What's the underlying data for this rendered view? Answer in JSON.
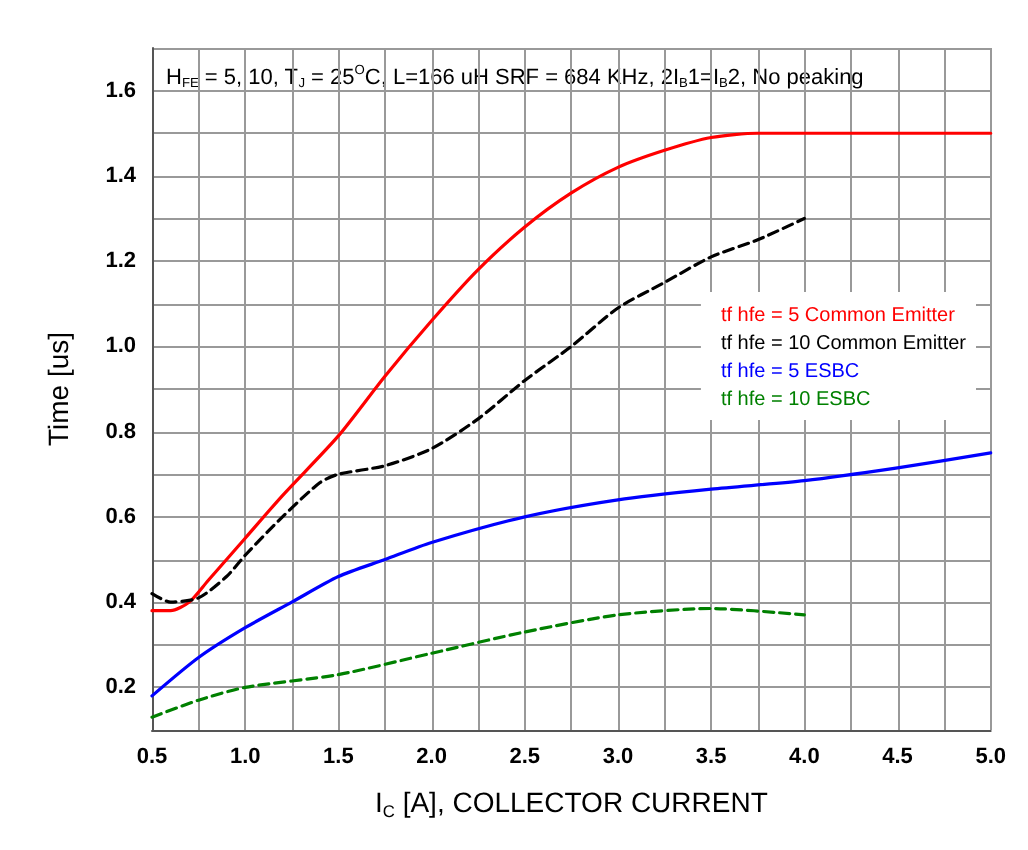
{
  "chart_data": {
    "type": "line",
    "xlabel": "I$_{C}$ [A], COLLECTOR CURRENT",
    "ylabel": "Time [us]",
    "annotations": [
      "H$_{FE}$ = 5, 10, T$_{J}$ = 25$^{O}$C, L=166 uH SRF = 684 KHz, 2I$_{B}$1=I$_{B}$2, No peaking"
    ],
    "xlim": [
      0.5,
      5.0
    ],
    "ylim": [
      0.1,
      1.7
    ],
    "xticks": [
      {
        "value": 0.5,
        "label": "0.5"
      },
      {
        "value": 0.75,
        "label": null
      },
      {
        "value": 1,
        "label": "1.0"
      },
      {
        "value": 1.25,
        "label": null
      },
      {
        "value": 1.5,
        "label": "1.5"
      },
      {
        "value": 1.75,
        "label": null
      },
      {
        "value": 2,
        "label": "2.0"
      },
      {
        "value": 2.25,
        "label": null
      },
      {
        "value": 2.5,
        "label": "2.5"
      },
      {
        "value": 2.75,
        "label": null
      },
      {
        "value": 3,
        "label": "3.0"
      },
      {
        "value": 3.25,
        "label": null
      },
      {
        "value": 3.5,
        "label": "3.5"
      },
      {
        "value": 3.75,
        "label": null
      },
      {
        "value": 4,
        "label": "4.0"
      },
      {
        "value": 4.25,
        "label": null
      },
      {
        "value": 4.5,
        "label": "4.5"
      },
      {
        "value": 4.75,
        "label": null
      },
      {
        "value": 5,
        "label": "5.0"
      }
    ],
    "yticks": [
      {
        "value": 0.1,
        "label": null
      },
      {
        "value": 0.2,
        "label": "0.2"
      },
      {
        "value": 0.3,
        "label": null
      },
      {
        "value": 0.4,
        "label": "0.4"
      },
      {
        "value": 0.5,
        "label": null
      },
      {
        "value": 0.6,
        "label": "0.6"
      },
      {
        "value": 0.7,
        "label": null
      },
      {
        "value": 0.8,
        "label": "0.8"
      },
      {
        "value": 0.9,
        "label": null
      },
      {
        "value": 1,
        "label": "1.0"
      },
      {
        "value": 1.1,
        "label": null
      },
      {
        "value": 1.2,
        "label": "1.2"
      },
      {
        "value": 1.3,
        "label": null
      },
      {
        "value": 1.4,
        "label": "1.4"
      },
      {
        "value": 1.5,
        "label": null
      },
      {
        "value": 1.6,
        "label": "1.6"
      },
      {
        "value": 1.7,
        "label": null
      }
    ],
    "grid": true,
    "legend": "right",
    "marker": "none",
    "series": [
      {
        "name": "tf hfe = 5 Common Emitter",
        "color": "#ff0000",
        "line_style": "solid",
        "x": [
          0.5,
          0.6,
          0.7,
          0.8,
          1.0,
          1.2,
          1.5,
          1.75,
          2.0,
          2.25,
          2.5,
          2.75,
          3.0,
          3.25,
          3.5,
          3.75,
          4.0,
          5.0
        ],
        "values": [
          0.38,
          0.38,
          0.4,
          0.45,
          0.55,
          0.65,
          0.79,
          0.93,
          1.06,
          1.18,
          1.28,
          1.36,
          1.42,
          1.46,
          1.49,
          1.5,
          1.5,
          1.5
        ]
      },
      {
        "name": "tf hfe = 10 Common Emitter",
        "color": "#000000",
        "line_style": "dashed",
        "x": [
          0.5,
          0.6,
          0.75,
          0.9,
          1.0,
          1.2,
          1.4,
          1.5,
          1.75,
          2.0,
          2.25,
          2.5,
          2.75,
          3.0,
          3.25,
          3.5,
          3.75,
          4.0
        ],
        "values": [
          0.42,
          0.4,
          0.41,
          0.46,
          0.51,
          0.6,
          0.68,
          0.7,
          0.72,
          0.76,
          0.83,
          0.92,
          1.0,
          1.09,
          1.15,
          1.21,
          1.25,
          1.3
        ]
      },
      {
        "name": "tf hfe = 5 ESBC",
        "color": "#0000ff",
        "line_style": "solid",
        "x": [
          0.5,
          0.75,
          1.0,
          1.25,
          1.5,
          1.75,
          2.0,
          2.5,
          3.0,
          3.5,
          4.0,
          4.5,
          5.0
        ],
        "values": [
          0.18,
          0.27,
          0.34,
          0.4,
          0.46,
          0.5,
          0.54,
          0.6,
          0.64,
          0.665,
          0.685,
          0.715,
          0.75
        ]
      },
      {
        "name": "tf hfe = 10 ESBC",
        "color": "#008000",
        "line_style": "dashed",
        "x": [
          0.5,
          0.75,
          1.0,
          1.5,
          2.0,
          2.5,
          3.0,
          3.5,
          4.0
        ],
        "values": [
          0.13,
          0.17,
          0.2,
          0.23,
          0.28,
          0.33,
          0.37,
          0.385,
          0.37
        ]
      }
    ]
  }
}
